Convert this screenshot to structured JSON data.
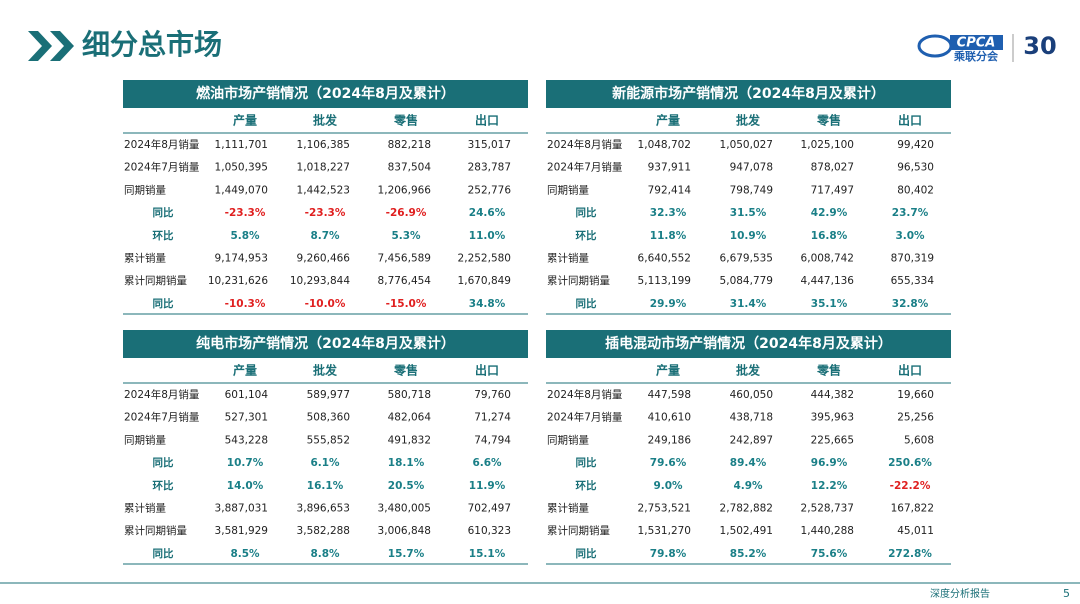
{
  "header": {
    "title": "细分总市场",
    "logo": {
      "brand": "CPCA",
      "name": "乘联分会",
      "anniversary": "30"
    }
  },
  "columns": [
    "产量",
    "批发",
    "零售",
    "出口"
  ],
  "tables": [
    {
      "title": "燃油市场产销情况（2024年8月及累计）",
      "rows": [
        [
          "2024年8月销量",
          "1,111,701",
          "1,106,385",
          "882,218",
          "315,017"
        ],
        [
          "2024年7月销量",
          "1,050,395",
          "1,018,227",
          "837,504",
          "283,787"
        ],
        [
          "同期销量",
          "1,449,070",
          "1,442,523",
          "1,206,966",
          "252,776"
        ],
        [
          "同比",
          "-23.3%",
          "-23.3%",
          "-26.9%",
          "24.6%"
        ],
        [
          "环比",
          "5.8%",
          "8.7%",
          "5.3%",
          "11.0%"
        ],
        [
          "累计销量",
          "9,174,953",
          "9,260,466",
          "7,456,589",
          "2,252,580"
        ],
        [
          "累计同期销量",
          "10,231,626",
          "10,293,844",
          "8,776,454",
          "1,670,849"
        ],
        [
          "同比",
          "-10.3%",
          "-10.0%",
          "-15.0%",
          "34.8%"
        ]
      ]
    },
    {
      "title": "新能源市场产销情况（2024年8月及累计）",
      "rows": [
        [
          "2024年8月销量",
          "1,048,702",
          "1,050,027",
          "1,025,100",
          "99,420"
        ],
        [
          "2024年7月销量",
          "937,911",
          "947,078",
          "878,027",
          "96,530"
        ],
        [
          "同期销量",
          "792,414",
          "798,749",
          "717,497",
          "80,402"
        ],
        [
          "同比",
          "32.3%",
          "31.5%",
          "42.9%",
          "23.7%"
        ],
        [
          "环比",
          "11.8%",
          "10.9%",
          "16.8%",
          "3.0%"
        ],
        [
          "累计销量",
          "6,640,552",
          "6,679,535",
          "6,008,742",
          "870,319"
        ],
        [
          "累计同期销量",
          "5,113,199",
          "5,084,779",
          "4,447,136",
          "655,334"
        ],
        [
          "同比",
          "29.9%",
          "31.4%",
          "35.1%",
          "32.8%"
        ]
      ]
    },
    {
      "title": "纯电市场产销情况（2024年8月及累计）",
      "rows": [
        [
          "2024年8月销量",
          "601,104",
          "589,977",
          "580,718",
          "79,760"
        ],
        [
          "2024年7月销量",
          "527,301",
          "508,360",
          "482,064",
          "71,274"
        ],
        [
          "同期销量",
          "543,228",
          "555,852",
          "491,832",
          "74,794"
        ],
        [
          "同比",
          "10.7%",
          "6.1%",
          "18.1%",
          "6.6%"
        ],
        [
          "环比",
          "14.0%",
          "16.1%",
          "20.5%",
          "11.9%"
        ],
        [
          "累计销量",
          "3,887,031",
          "3,896,653",
          "3,480,005",
          "702,497"
        ],
        [
          "累计同期销量",
          "3,581,929",
          "3,582,288",
          "3,006,848",
          "610,323"
        ],
        [
          "同比",
          "8.5%",
          "8.8%",
          "15.7%",
          "15.1%"
        ]
      ]
    },
    {
      "title": "插电混动市场产销情况（2024年8月及累计）",
      "rows": [
        [
          "2024年8月销量",
          "447,598",
          "460,050",
          "444,382",
          "19,660"
        ],
        [
          "2024年7月销量",
          "410,610",
          "438,718",
          "395,963",
          "25,256"
        ],
        [
          "同期销量",
          "249,186",
          "242,897",
          "225,665",
          "5,608"
        ],
        [
          "同比",
          "79.6%",
          "89.4%",
          "96.9%",
          "250.6%"
        ],
        [
          "环比",
          "9.0%",
          "4.9%",
          "12.2%",
          "-22.2%"
        ],
        [
          "累计销量",
          "2,753,521",
          "2,782,882",
          "2,528,737",
          "167,822"
        ],
        [
          "累计同期销量",
          "1,531,270",
          "1,502,491",
          "1,440,288",
          "45,011"
        ],
        [
          "同比",
          "79.8%",
          "85.2%",
          "75.6%",
          "272.8%"
        ]
      ]
    }
  ],
  "footer": {
    "label": "深度分析报告",
    "page": "5"
  }
}
